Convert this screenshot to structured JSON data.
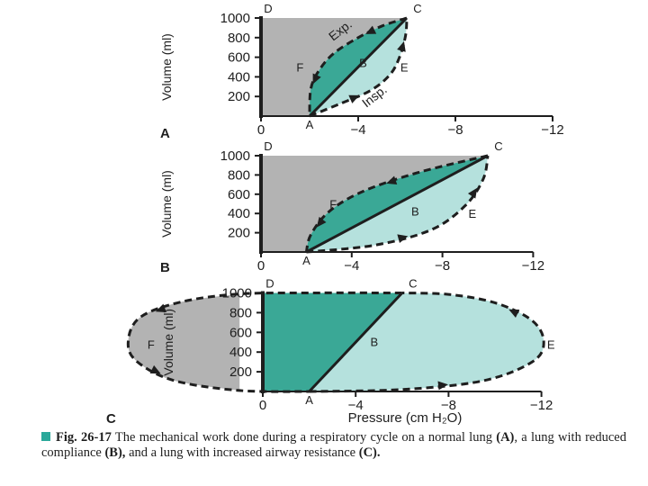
{
  "caption": {
    "fig_label": "Fig. 26-17",
    "text_1": " The mechanical work done during a respiratory cycle on a normal lung ",
    "bold_A": "(A)",
    "text_2": ", a lung with reduced compliance ",
    "bold_B": "(B),",
    "text_3": " and a lung with increased airway resistance ",
    "bold_C": "(C).",
    "accent_color": "#2aa89a"
  },
  "colors": {
    "dark_teal": "#3aa896",
    "light_teal": "#b5e1dd",
    "gray": "#b3b3b3",
    "line": "#1e1e1e"
  },
  "chart_data": [
    {
      "type": "area",
      "panel_label": "A",
      "ylabel": "Volume (ml)",
      "xlabel": "",
      "x_ticks": [
        "0",
        "−4",
        "−8",
        "−12"
      ],
      "y_ticks": [
        "200",
        "400",
        "600",
        "800",
        "1000"
      ],
      "xlim": [
        0,
        -12
      ],
      "ylim": [
        0,
        1000
      ],
      "points": {
        "A": {
          "label": "A",
          "x": -2,
          "y": 0
        },
        "B": {
          "label": "B",
          "x": -4.2,
          "y": 500
        },
        "C": {
          "label": "C",
          "x": -6,
          "y": 1000
        },
        "D": {
          "label": "D",
          "x": 0,
          "y": 1000
        },
        "E": {
          "label": "E",
          "x": -5.6,
          "y": 500
        },
        "F": {
          "label": "F",
          "x": -1.9,
          "y": 500
        }
      },
      "curve_labels": {
        "exp": "Exp.",
        "insp": "Insp."
      },
      "expiration_curve": [
        [
          -6,
          1000
        ],
        [
          -5,
          920
        ],
        [
          -4,
          800
        ],
        [
          -3,
          640
        ],
        [
          -2.4,
          470
        ],
        [
          -2.05,
          280
        ],
        [
          -2,
          0
        ]
      ],
      "inspiration_curve": [
        [
          -2,
          0
        ],
        [
          -3.2,
          120
        ],
        [
          -4.5,
          260
        ],
        [
          -5.3,
          420
        ],
        [
          -5.7,
          600
        ],
        [
          -5.95,
          820
        ],
        [
          -6,
          1000
        ]
      ]
    },
    {
      "type": "area",
      "panel_label": "B",
      "ylabel": "Volume (ml)",
      "xlabel": "",
      "x_ticks": [
        "0",
        "−4",
        "−8",
        "−12"
      ],
      "y_ticks": [
        "200",
        "400",
        "600",
        "800",
        "1000"
      ],
      "xlim": [
        0,
        -12
      ],
      "ylim": [
        0,
        1000
      ],
      "points": {
        "A": {
          "label": "A",
          "x": -2,
          "y": 0
        },
        "B": {
          "label": "B",
          "x": -6.8,
          "y": 380
        },
        "C": {
          "label": "C",
          "x": -10,
          "y": 1000
        },
        "D": {
          "label": "D",
          "x": 0,
          "y": 1000
        },
        "E": {
          "label": "E",
          "x": -9,
          "y": 400
        },
        "F": {
          "label": "F",
          "x": -3.5,
          "y": 500
        }
      },
      "expiration_curve": [
        [
          -10,
          1000
        ],
        [
          -7,
          830
        ],
        [
          -4.5,
          630
        ],
        [
          -3,
          420
        ],
        [
          -2.2,
          180
        ],
        [
          -2,
          0
        ]
      ],
      "inspiration_curve": [
        [
          -2,
          0
        ],
        [
          -5,
          70
        ],
        [
          -7.5,
          230
        ],
        [
          -9,
          480
        ],
        [
          -9.8,
          760
        ],
        [
          -10,
          1000
        ]
      ]
    },
    {
      "type": "area",
      "panel_label": "C",
      "ylabel": "Volume (ml)",
      "xlabel": "Pressure (cm H₂O)",
      "x_ticks": [
        "0",
        "−4",
        "−8",
        "−12"
      ],
      "y_ticks": [
        "200",
        "400",
        "600",
        "800",
        "1000"
      ],
      "xlim": [
        0,
        -12
      ],
      "ylim": [
        0,
        1000
      ],
      "points": {
        "A": {
          "label": "A",
          "x": -2,
          "y": 0
        },
        "B": {
          "label": "B",
          "x": -4.8,
          "y": 460
        },
        "C": {
          "label": "C",
          "x": -6,
          "y": 1000
        },
        "D": {
          "label": "D",
          "x": 0,
          "y": 1000
        },
        "E": {
          "label": "E",
          "x": -12.1,
          "y": 480
        },
        "F": {
          "label": "F",
          "x": 4.5,
          "y": 480
        }
      },
      "expiration_curve": [
        [
          -6,
          1000
        ],
        [
          -2,
          1000
        ],
        [
          1,
          990
        ],
        [
          3.5,
          910
        ],
        [
          5.3,
          750
        ],
        [
          5.8,
          500
        ],
        [
          5.4,
          300
        ],
        [
          3.8,
          110
        ],
        [
          1,
          10
        ],
        [
          -2,
          0
        ]
      ],
      "inspiration_curve": [
        [
          -2,
          0
        ],
        [
          -6,
          20
        ],
        [
          -9.5,
          110
        ],
        [
          -11.6,
          300
        ],
        [
          -12.1,
          500
        ],
        [
          -11.6,
          720
        ],
        [
          -10,
          900
        ],
        [
          -8,
          985
        ],
        [
          -6,
          1000
        ]
      ]
    }
  ]
}
